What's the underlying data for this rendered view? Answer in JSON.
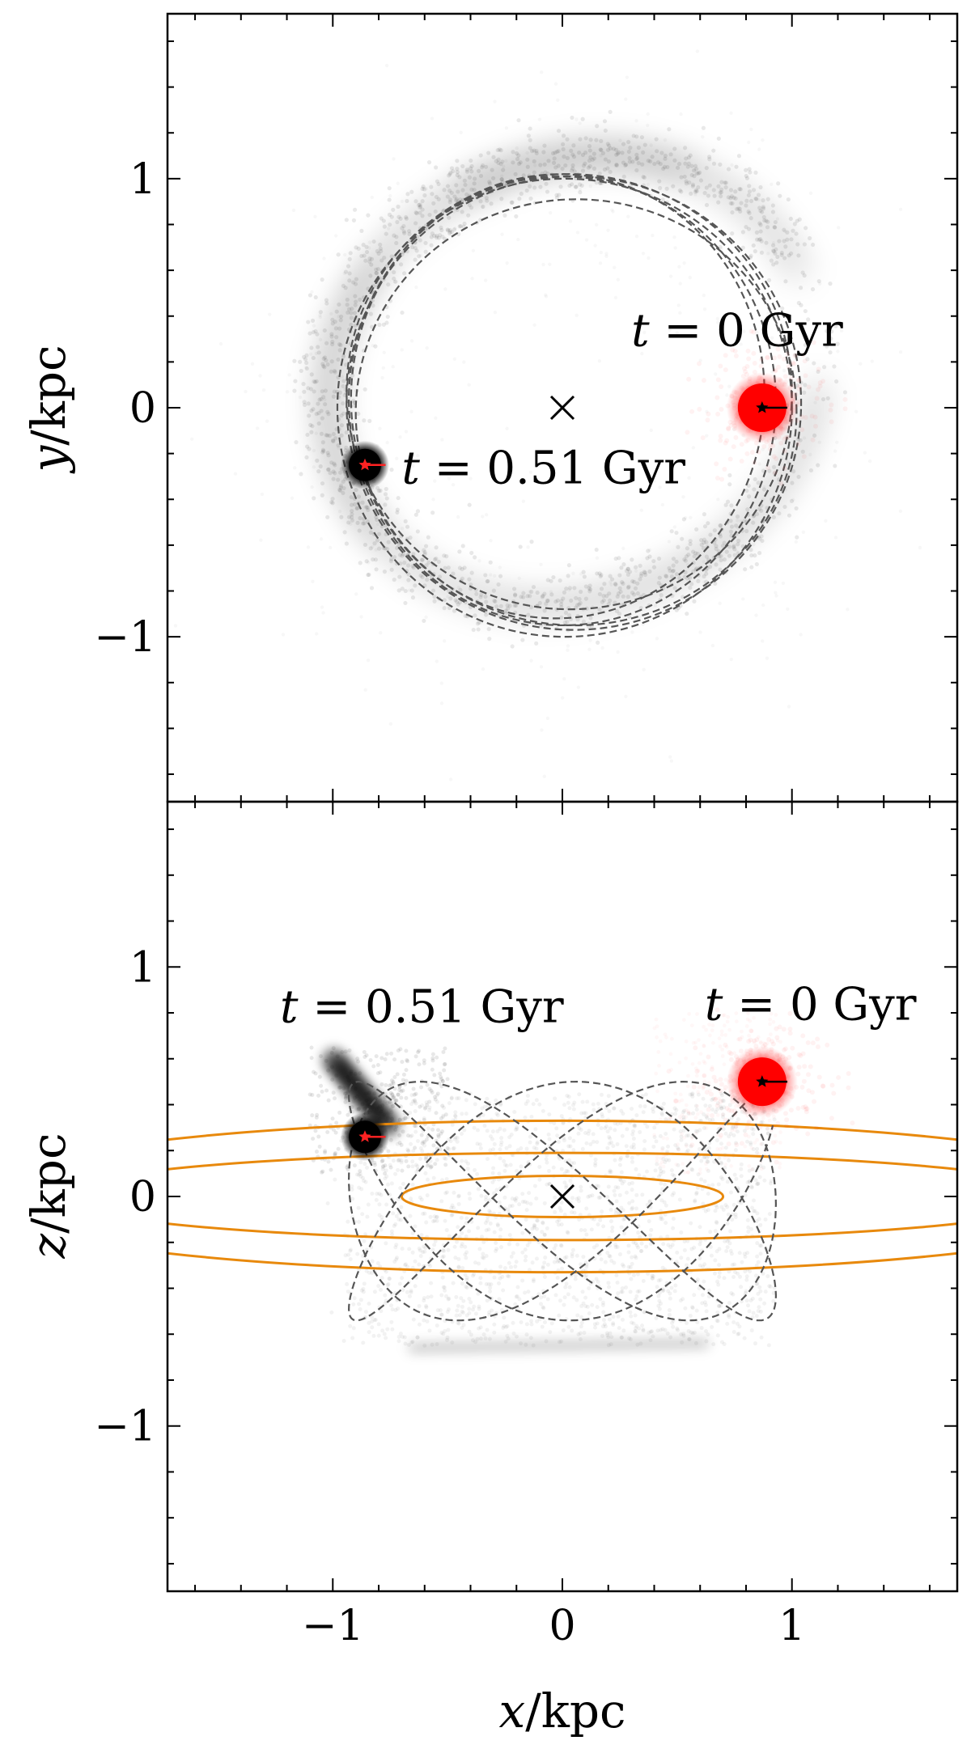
{
  "chart_data": [
    {
      "type": "scatter",
      "panel": "top",
      "xlabel": "",
      "ylabel_var": "y",
      "ylabel_unit": "/kpc",
      "xlim": [
        -1.72,
        1.72
      ],
      "ylim": [
        -1.72,
        1.72
      ],
      "yticks": [
        -1,
        0,
        1
      ],
      "ytick_labels": [
        "−1",
        "0",
        "1"
      ],
      "xticks": [
        -1,
        0,
        1
      ],
      "minor_step": 0.2,
      "center_marker": {
        "x": 0,
        "y": 0,
        "symbol": "×"
      },
      "annotations": [
        {
          "id": "start",
          "var": "t",
          "text": " = 0 Gyr",
          "x": 0.3,
          "y": 0.27,
          "color": "#ff0000"
        },
        {
          "id": "end",
          "var": "t",
          "text": " = 0.51 Gyr",
          "x": -0.7,
          "y": -0.33,
          "color": "#000000"
        }
      ],
      "start_cluster": {
        "x": 0.87,
        "y": 0.0,
        "color": "#ff0000",
        "arrow_to": [
          0.98,
          0.0
        ],
        "star_color": "#000000"
      },
      "end_cluster": {
        "x": -0.86,
        "y": -0.25,
        "color": "#000000",
        "arrow_to": [
          -0.77,
          -0.25
        ],
        "star_color": "#ff2222"
      },
      "orbit_style": "dashed, #555555",
      "stream_color": "#000000"
    },
    {
      "type": "scatter",
      "panel": "bottom",
      "xlabel_var": "x",
      "xlabel_unit": "/kpc",
      "ylabel_var": "z",
      "ylabel_unit": "/kpc",
      "xlim": [
        -1.72,
        1.72
      ],
      "ylim": [
        -1.72,
        1.72
      ],
      "xticks": [
        -1,
        0,
        1
      ],
      "xtick_labels": [
        "−1",
        "0",
        "1"
      ],
      "yticks": [
        -1,
        0,
        1
      ],
      "ytick_labels": [
        "−1",
        "0",
        "1"
      ],
      "minor_step": 0.2,
      "center_marker": {
        "x": 0,
        "y": 0,
        "symbol": "×"
      },
      "annotations": [
        {
          "id": "end",
          "var": "t",
          "text": " = 0.51 Gyr",
          "x": -1.23,
          "y": 0.76,
          "color": "#000000"
        },
        {
          "id": "start",
          "var": "t",
          "text": " = 0 Gyr",
          "x": 0.62,
          "y": 0.77,
          "color": "#ff0000"
        }
      ],
      "start_cluster": {
        "x": 0.87,
        "y": 0.5,
        "color": "#ff0000",
        "arrow_to": [
          0.98,
          0.5
        ],
        "star_color": "#000000"
      },
      "end_cluster": {
        "x": -0.86,
        "y": 0.26,
        "color": "#000000",
        "arrow_to": [
          -0.77,
          0.26
        ],
        "star_color": "#ff2222"
      },
      "density_contours": {
        "color": "#e8890c",
        "ellipses": [
          {
            "a": 0.7,
            "b": 0.09
          },
          {
            "a": 2.2,
            "b": 0.19
          },
          {
            "a": 2.6,
            "b": 0.33
          }
        ]
      },
      "orbit_style": "dashed, #555555",
      "stream_color": "#000000"
    }
  ]
}
